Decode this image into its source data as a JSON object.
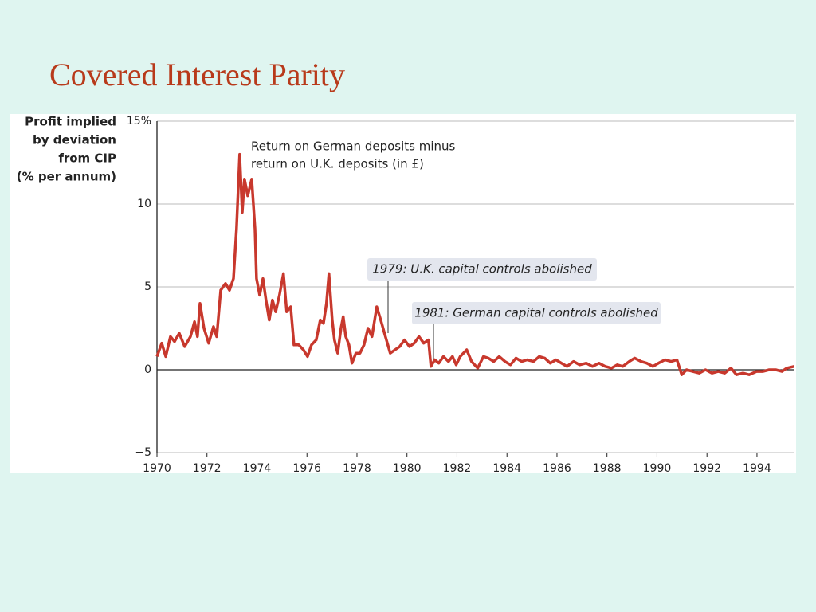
{
  "slide": {
    "title": "Covered Interest Parity"
  },
  "chart_data": {
    "type": "line",
    "ylabel": [
      "Profit implied",
      "by deviation",
      "from CIP",
      "(% per annum)"
    ],
    "line_note": [
      "Return on German deposits minus",
      "return on U.K. deposits (in £)"
    ],
    "annotations": [
      "1979: U.K. capital controls abolished",
      "1981: German capital controls abolished"
    ],
    "xlim": [
      1970,
      1995.5
    ],
    "xticks": [
      1970,
      1972,
      1974,
      1976,
      1978,
      1980,
      1982,
      1984,
      1986,
      1988,
      1990,
      1992,
      1994
    ],
    "ylim": [
      -5,
      15
    ],
    "yticks": [
      {
        "value": -5,
        "label": "−5"
      },
      0,
      5,
      10,
      {
        "value": 15,
        "label": "15%"
      }
    ],
    "grid": true,
    "x": [
      1970.0,
      1970.19,
      1970.35,
      1970.54,
      1970.7,
      1970.89,
      1971.11,
      1971.34,
      1971.5,
      1971.62,
      1971.72,
      1971.88,
      1972.07,
      1972.26,
      1972.39,
      1972.55,
      1972.74,
      1972.9,
      1973.06,
      1973.18,
      1973.31,
      1973.41,
      1973.5,
      1973.63,
      1973.79,
      1973.92,
      1973.98,
      1974.11,
      1974.24,
      1974.36,
      1974.49,
      1974.62,
      1974.75,
      1974.9,
      1975.06,
      1975.19,
      1975.35,
      1975.48,
      1975.67,
      1975.86,
      1976.02,
      1976.18,
      1976.37,
      1976.53,
      1976.66,
      1976.78,
      1976.88,
      1977.01,
      1977.1,
      1977.23,
      1977.36,
      1977.45,
      1977.55,
      1977.68,
      1977.8,
      1977.96,
      1978.12,
      1978.28,
      1978.44,
      1978.6,
      1978.79,
      1978.95,
      1979.14,
      1979.33,
      1979.52,
      1979.71,
      1979.9,
      1980.1,
      1980.29,
      1980.48,
      1980.67,
      1980.86,
      1980.96,
      1981.11,
      1981.27,
      1981.46,
      1981.66,
      1981.82,
      1981.97,
      1982.13,
      1982.39,
      1982.58,
      1982.83,
      1983.06,
      1983.25,
      1983.47,
      1983.69,
      1983.92,
      1984.14,
      1984.36,
      1984.59,
      1984.81,
      1985.06,
      1985.29,
      1985.51,
      1985.73,
      1985.96,
      1986.18,
      1986.4,
      1986.66,
      1986.91,
      1987.17,
      1987.42,
      1987.68,
      1987.93,
      1988.18,
      1988.41,
      1988.63,
      1988.89,
      1989.11,
      1989.36,
      1989.59,
      1989.84,
      1990.06,
      1990.32,
      1990.57,
      1990.8,
      1990.99,
      1991.18,
      1991.43,
      1991.69,
      1991.94,
      1992.2,
      1992.45,
      1992.71,
      1992.96,
      1993.18,
      1993.44,
      1993.69,
      1993.98,
      1994.24,
      1994.49,
      1994.75,
      1995.0,
      1995.19,
      1995.48
    ],
    "series": [
      {
        "color": "#c8382d",
        "values": [
          0.8,
          1.6,
          0.8,
          2.0,
          1.7,
          2.2,
          1.4,
          2.0,
          2.9,
          2.0,
          4.0,
          2.5,
          1.6,
          2.6,
          2.0,
          4.8,
          5.2,
          4.8,
          5.5,
          8.5,
          13.0,
          9.5,
          11.5,
          10.5,
          11.5,
          8.5,
          5.5,
          4.5,
          5.5,
          4.2,
          3.0,
          4.2,
          3.5,
          4.5,
          5.8,
          3.5,
          3.8,
          1.5,
          1.5,
          1.2,
          0.8,
          1.5,
          1.8,
          3.0,
          2.8,
          4.0,
          5.8,
          3.0,
          1.8,
          1.0,
          2.5,
          3.2,
          2.0,
          1.5,
          0.4,
          1.0,
          1.0,
          1.5,
          2.5,
          2.0,
          3.8,
          3.0,
          2.0,
          1.0,
          1.2,
          1.4,
          1.8,
          1.4,
          1.6,
          2.0,
          1.6,
          1.8,
          0.2,
          0.6,
          0.4,
          0.8,
          0.5,
          0.8,
          0.3,
          0.8,
          1.2,
          0.5,
          0.1,
          0.8,
          0.7,
          0.5,
          0.8,
          0.5,
          0.3,
          0.7,
          0.5,
          0.6,
          0.5,
          0.8,
          0.7,
          0.4,
          0.6,
          0.4,
          0.2,
          0.5,
          0.3,
          0.4,
          0.2,
          0.4,
          0.2,
          0.1,
          0.3,
          0.2,
          0.5,
          0.7,
          0.5,
          0.4,
          0.2,
          0.4,
          0.6,
          0.5,
          0.6,
          -0.3,
          0.0,
          -0.1,
          -0.2,
          0.0,
          -0.2,
          -0.1,
          -0.2,
          0.1,
          -0.3,
          -0.2,
          -0.3,
          -0.1,
          -0.1,
          0.0,
          0.0,
          -0.1,
          0.1,
          0.2
        ]
      }
    ]
  }
}
